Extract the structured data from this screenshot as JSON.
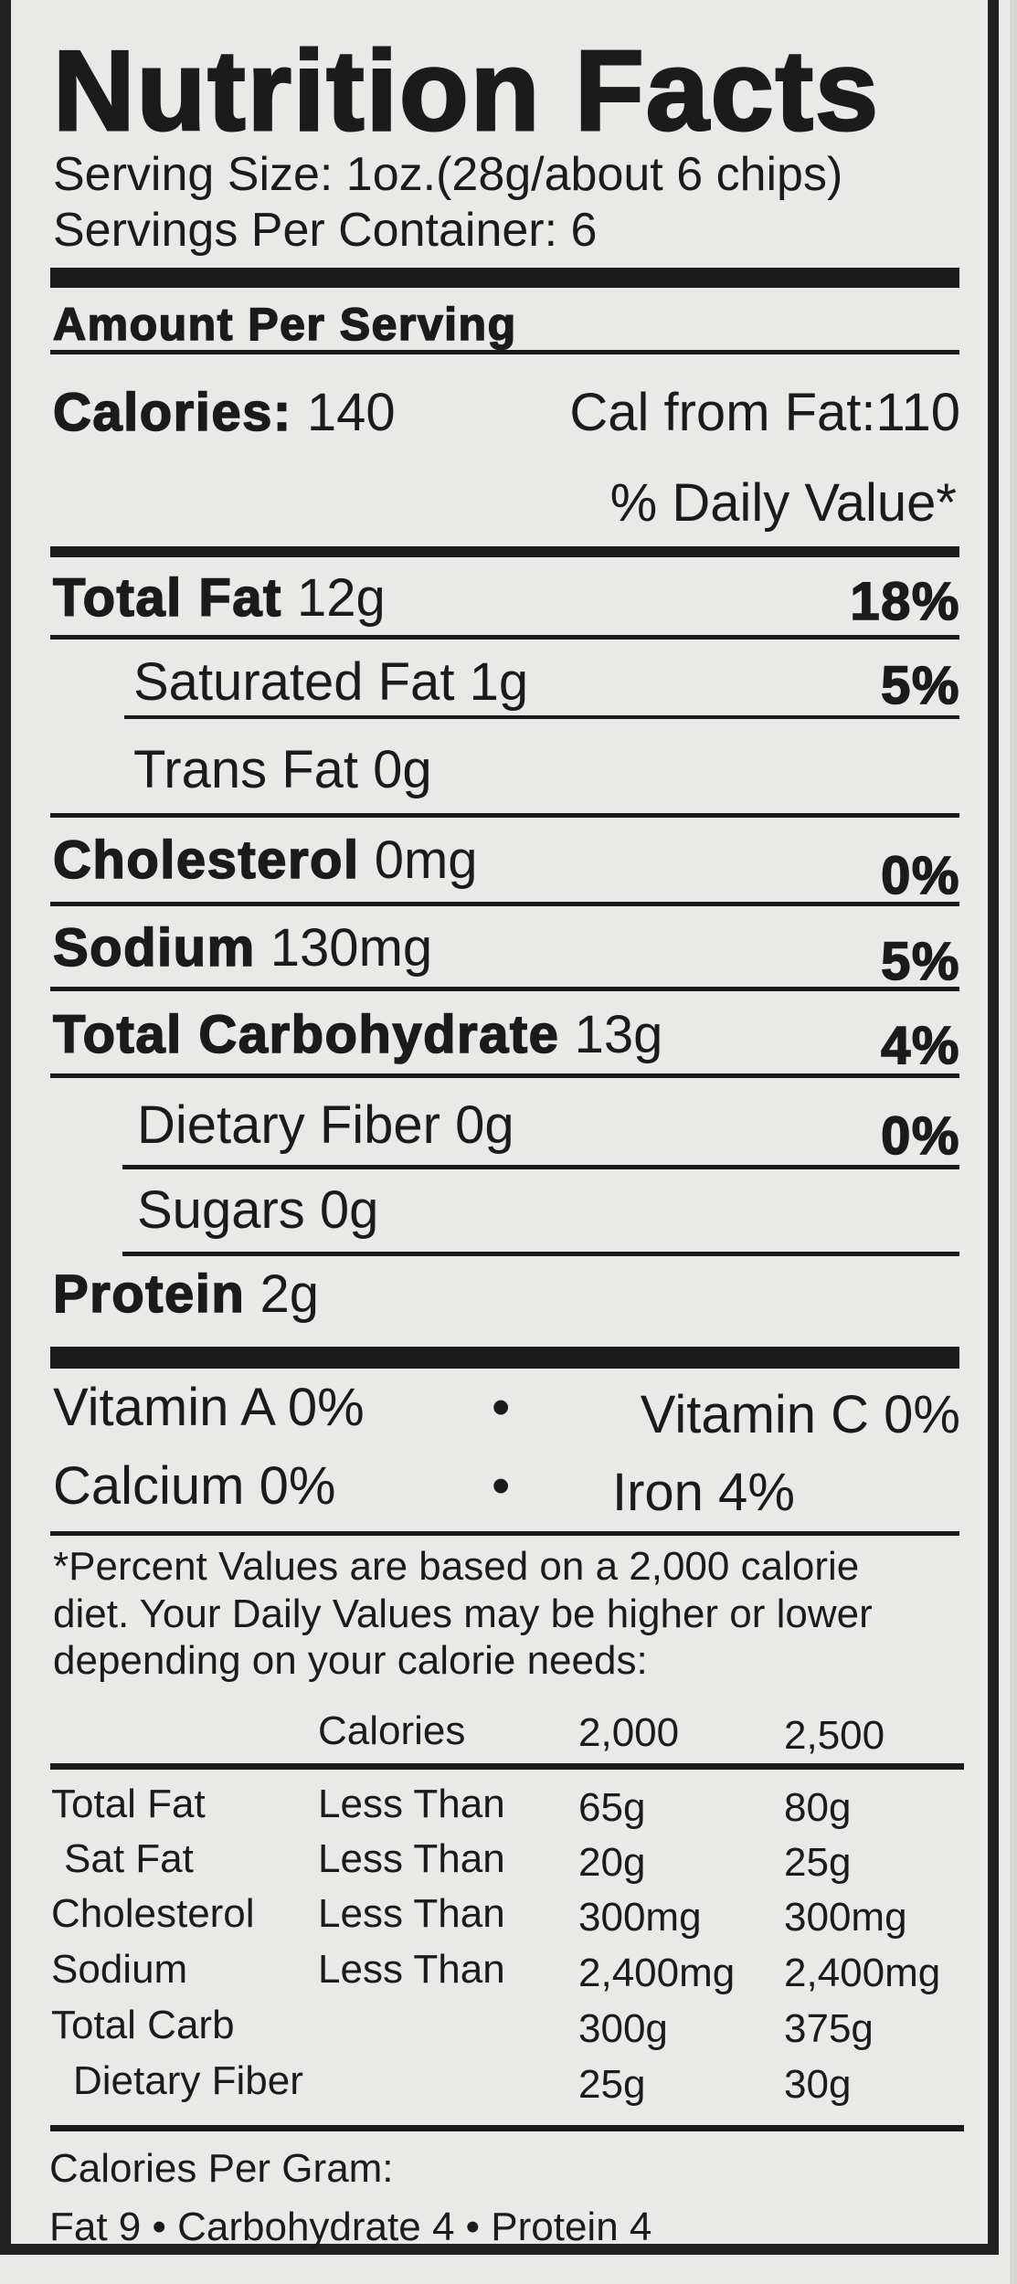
{
  "title": "Nutrition Facts",
  "serving_size": "Serving Size: 1oz.(28g/about 6 chips)",
  "servings_per_container": "Servings Per Container: 6",
  "amount_per_serving": "Amount Per Serving",
  "calories": {
    "label": "Calories:",
    "value": "140",
    "from_fat": "Cal from Fat:110"
  },
  "daily_value_header": "% Daily Value*",
  "nutrients": [
    {
      "label": "Total Fat",
      "amount": "12g",
      "dv": "18%"
    },
    {
      "label": "Saturated Fat",
      "amount": "1g",
      "dv": "5%"
    },
    {
      "label": "Trans Fat",
      "amount": "0g",
      "dv": ""
    },
    {
      "label": "Cholesterol",
      "amount": "0mg",
      "dv": "0%"
    },
    {
      "label": "Sodium",
      "amount": "130mg",
      "dv": "5%"
    },
    {
      "label": "Total Carbohydrate",
      "amount": "13g",
      "dv": "4%"
    },
    {
      "label": "Dietary Fiber",
      "amount": "0g",
      "dv": "0%"
    },
    {
      "label": "Sugars",
      "amount": "0g",
      "dv": ""
    },
    {
      "label": "Protein",
      "amount": "2g",
      "dv": ""
    }
  ],
  "vitamins": {
    "vitamin_a": "Vitamin A 0%",
    "vitamin_c": "Vitamin C 0%",
    "calcium": "Calcium 0%",
    "iron": "Iron 4%",
    "bullet": "•"
  },
  "footnote": [
    "*Percent Values are based on a 2,000 calorie",
    "diet. Your Daily Values may be higher or lower",
    "depending on your calorie needs:"
  ],
  "dv_table": {
    "header": [
      "",
      "Calories",
      "2,000",
      "2,500"
    ],
    "rows": [
      [
        "Total Fat",
        "Less Than",
        "65g",
        "80g"
      ],
      [
        "Sat Fat",
        "Less Than",
        "20g",
        "25g"
      ],
      [
        "Cholesterol",
        "Less Than",
        "300mg",
        "300mg"
      ],
      [
        "Sodium",
        "Less Than",
        "2,400mg",
        "2,400mg"
      ],
      [
        "Total Carb",
        "",
        "300g",
        "375g"
      ],
      [
        "Dietary Fiber",
        "",
        "25g",
        "30g"
      ]
    ]
  },
  "calories_per_gram": {
    "label": "Calories Per Gram:",
    "values": "Fat 9 • Carbohydrate 4 • Protein  4"
  }
}
